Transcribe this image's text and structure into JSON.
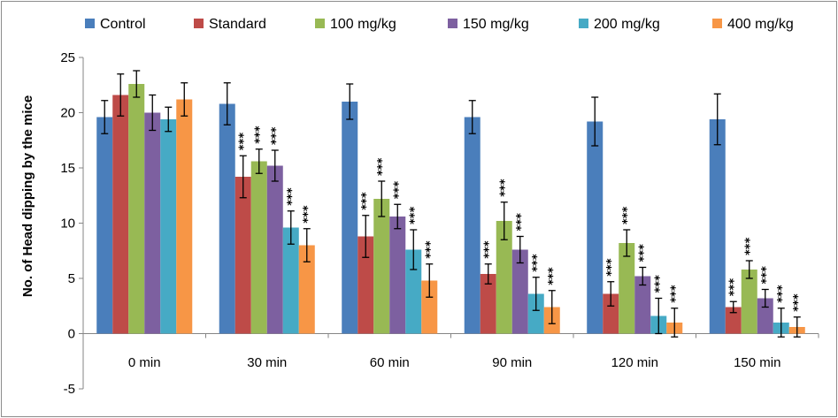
{
  "chart_data": {
    "type": "bar",
    "title": "",
    "xlabel": "",
    "ylabel": "No. of Head dipping by the mice",
    "ylim": [
      -5,
      25
    ],
    "yticks": [
      -5,
      0,
      5,
      10,
      15,
      20,
      25
    ],
    "grid": false,
    "legend_position": "top",
    "categories": [
      "0 min",
      "30 min",
      "60 min",
      "90 min",
      "120 min",
      "150 min"
    ],
    "significance_label": "***",
    "series": [
      {
        "name": "Control",
        "color": "#4a7ebb",
        "values": [
          19.6,
          20.8,
          21.0,
          19.6,
          19.2,
          19.4
        ],
        "errors": [
          1.5,
          1.9,
          1.6,
          1.5,
          2.2,
          2.3
        ],
        "significant": [
          false,
          false,
          false,
          false,
          false,
          false
        ]
      },
      {
        "name": "Standard",
        "color": "#be4b48",
        "values": [
          21.6,
          14.2,
          8.8,
          5.4,
          3.6,
          2.4
        ],
        "errors": [
          1.9,
          1.9,
          1.9,
          0.9,
          1.1,
          0.5
        ],
        "significant": [
          false,
          true,
          true,
          true,
          true,
          true
        ]
      },
      {
        "name": "100 mg/kg",
        "color": "#98b954",
        "values": [
          22.6,
          15.6,
          12.2,
          10.2,
          8.2,
          5.8
        ],
        "errors": [
          1.2,
          1.1,
          1.6,
          1.7,
          1.2,
          0.8
        ],
        "significant": [
          false,
          true,
          true,
          true,
          true,
          true
        ]
      },
      {
        "name": "150 mg/kg",
        "color": "#7d60a0",
        "values": [
          20.0,
          15.2,
          10.6,
          7.6,
          5.2,
          3.2
        ],
        "errors": [
          1.6,
          1.4,
          1.1,
          1.2,
          0.8,
          0.8
        ],
        "significant": [
          false,
          true,
          true,
          true,
          true,
          true
        ]
      },
      {
        "name": "200 mg/kg",
        "color": "#46aac5",
        "values": [
          19.4,
          9.6,
          7.6,
          3.6,
          1.6,
          1.0
        ],
        "errors": [
          1.1,
          1.5,
          1.8,
          1.5,
          1.6,
          1.3
        ],
        "significant": [
          false,
          true,
          true,
          true,
          true,
          true
        ]
      },
      {
        "name": "400 mg/kg",
        "color": "#f79646",
        "values": [
          21.2,
          8.0,
          4.8,
          2.4,
          1.0,
          0.6
        ],
        "errors": [
          1.5,
          1.5,
          1.5,
          1.5,
          1.3,
          0.9
        ],
        "significant": [
          false,
          true,
          true,
          true,
          true,
          true
        ]
      }
    ]
  }
}
